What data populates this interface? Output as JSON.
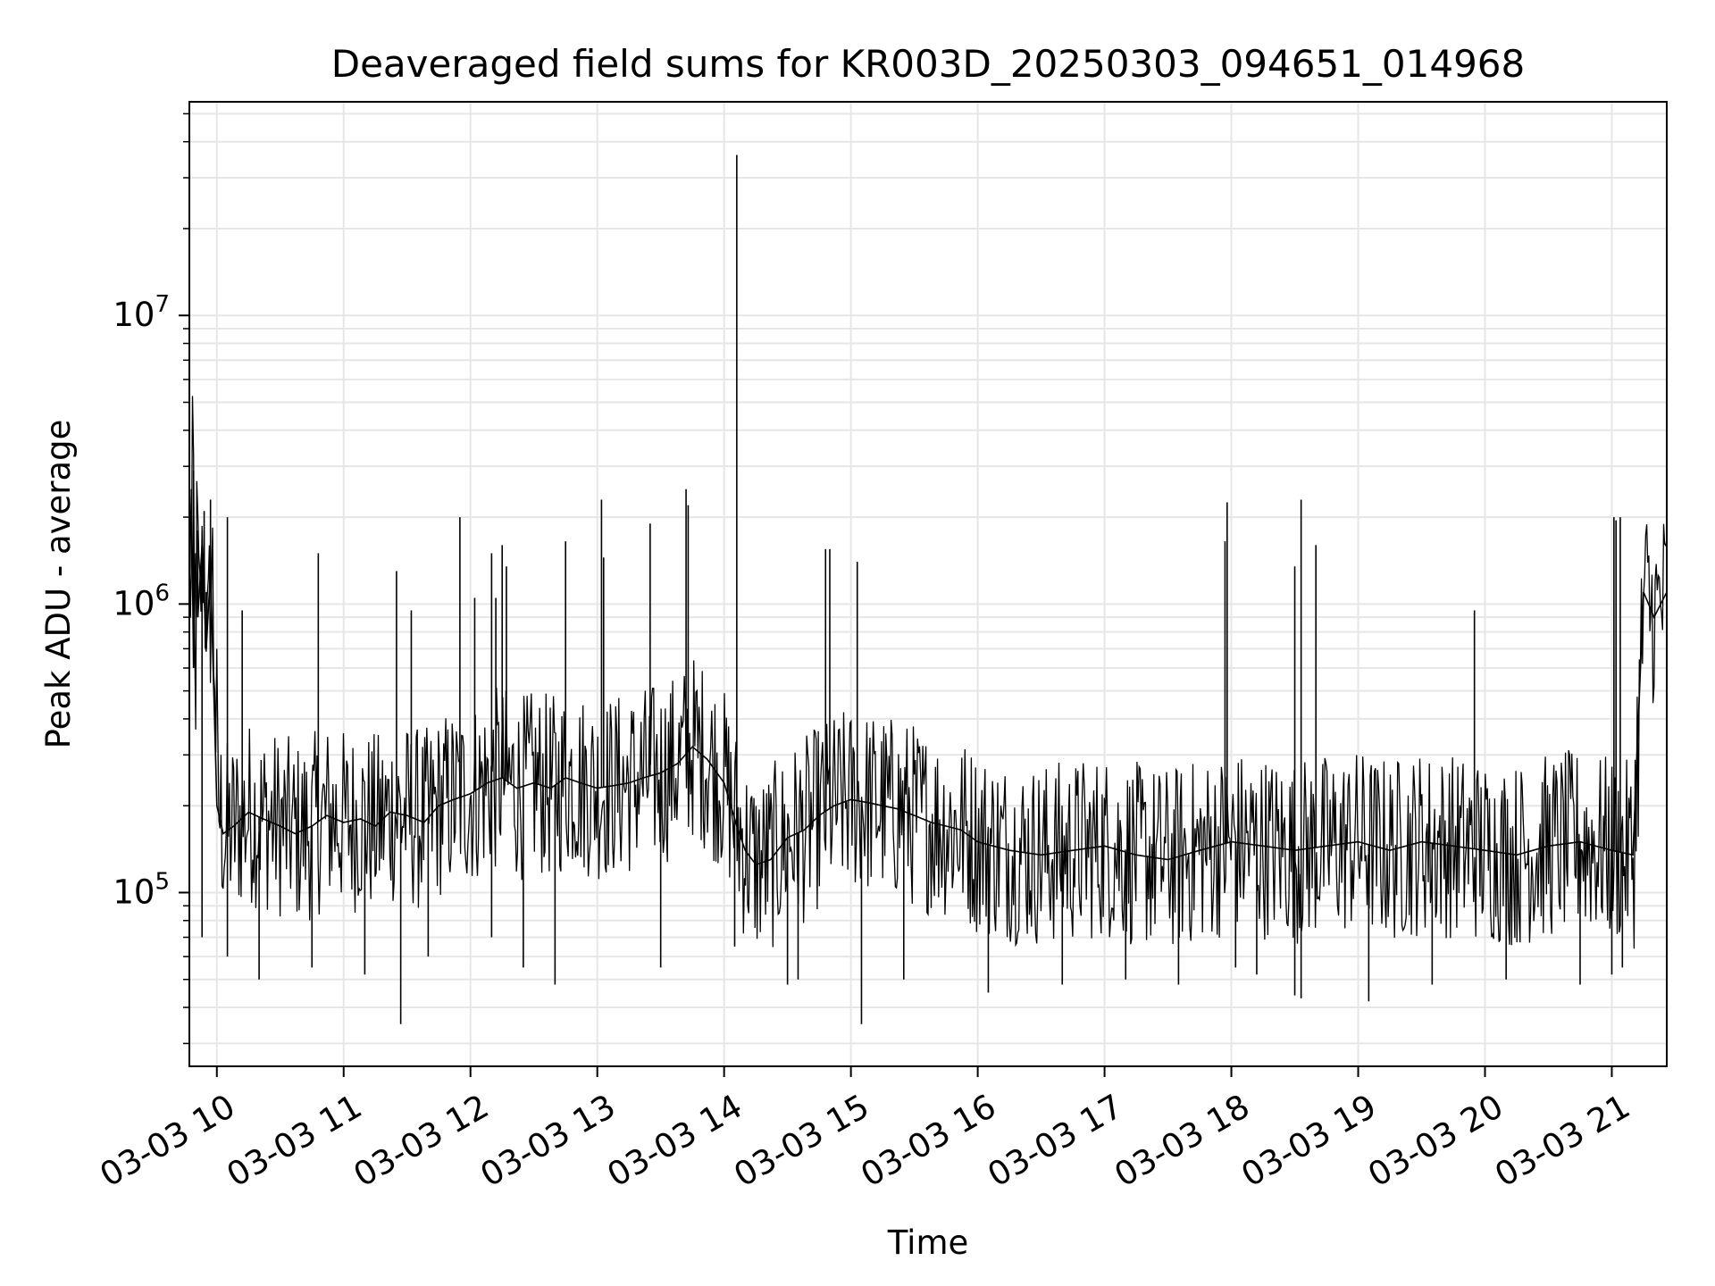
{
  "chart_data": {
    "type": "line",
    "title": "Deaveraged field sums for KR003D_20250303_094651_014968",
    "xlabel": "Time",
    "ylabel": "Peak ADU - average",
    "xlim": [
      "2025-03-03T09:47",
      "2025-03-03T21:26"
    ],
    "ylim": [
      25000,
      55000000
    ],
    "yscale": "log",
    "grid": true,
    "x_ticks": [
      {
        "t": "2025-03-03T10:00",
        "label": "03-03 10"
      },
      {
        "t": "2025-03-03T11:00",
        "label": "03-03 11"
      },
      {
        "t": "2025-03-03T12:00",
        "label": "03-03 12"
      },
      {
        "t": "2025-03-03T13:00",
        "label": "03-03 13"
      },
      {
        "t": "2025-03-03T14:00",
        "label": "03-03 14"
      },
      {
        "t": "2025-03-03T15:00",
        "label": "03-03 15"
      },
      {
        "t": "2025-03-03T16:00",
        "label": "03-03 16"
      },
      {
        "t": "2025-03-03T17:00",
        "label": "03-03 17"
      },
      {
        "t": "2025-03-03T18:00",
        "label": "03-03 18"
      },
      {
        "t": "2025-03-03T19:00",
        "label": "03-03 19"
      },
      {
        "t": "2025-03-03T20:00",
        "label": "03-03 20"
      },
      {
        "t": "2025-03-03T21:00",
        "label": "03-03 21"
      }
    ],
    "y_ticks": [
      {
        "value": 100000,
        "base": "10",
        "exp": "5"
      },
      {
        "value": 1000000,
        "base": "10",
        "exp": "6"
      },
      {
        "value": 10000000,
        "base": "10",
        "exp": "7"
      }
    ],
    "line_color": "#000000",
    "grid_color": "#e6e6e6",
    "series": [
      {
        "x": [
          "2025-03-03T09:47",
          "2025-03-03T09:48",
          "2025-03-03T09:49",
          "2025-03-03T09:50",
          "2025-03-03T09:51",
          "2025-03-03T09:53",
          "2025-03-03T09:55",
          "2025-03-03T09:57",
          "2025-03-03T10:00",
          "2025-03-03T10:03",
          "2025-03-03T10:08",
          "2025-03-03T10:15",
          "2025-03-03T10:22",
          "2025-03-03T10:30",
          "2025-03-03T10:37",
          "2025-03-03T10:45",
          "2025-03-03T10:52",
          "2025-03-03T11:00",
          "2025-03-03T11:08",
          "2025-03-03T11:15",
          "2025-03-03T11:22",
          "2025-03-03T11:30",
          "2025-03-03T11:38",
          "2025-03-03T11:45",
          "2025-03-03T11:52",
          "2025-03-03T12:00",
          "2025-03-03T12:08",
          "2025-03-03T12:15",
          "2025-03-03T12:22",
          "2025-03-03T12:30",
          "2025-03-03T12:38",
          "2025-03-03T12:45",
          "2025-03-03T12:52",
          "2025-03-03T13:00",
          "2025-03-03T13:08",
          "2025-03-03T13:15",
          "2025-03-03T13:22",
          "2025-03-03T13:30",
          "2025-03-03T13:38",
          "2025-03-03T13:45",
          "2025-03-03T13:52",
          "2025-03-03T14:00",
          "2025-03-03T14:06",
          "2025-03-03T14:10",
          "2025-03-03T14:15",
          "2025-03-03T14:22",
          "2025-03-03T14:30",
          "2025-03-03T14:38",
          "2025-03-03T14:45",
          "2025-03-03T14:52",
          "2025-03-03T15:00",
          "2025-03-03T15:08",
          "2025-03-03T15:15",
          "2025-03-03T15:22",
          "2025-03-03T15:30",
          "2025-03-03T15:38",
          "2025-03-03T15:45",
          "2025-03-03T15:52",
          "2025-03-03T16:00",
          "2025-03-03T16:15",
          "2025-03-03T16:30",
          "2025-03-03T16:45",
          "2025-03-03T17:00",
          "2025-03-03T17:15",
          "2025-03-03T17:30",
          "2025-03-03T17:45",
          "2025-03-03T18:00",
          "2025-03-03T18:15",
          "2025-03-03T18:30",
          "2025-03-03T18:45",
          "2025-03-03T19:00",
          "2025-03-03T19:15",
          "2025-03-03T19:30",
          "2025-03-03T19:45",
          "2025-03-03T20:00",
          "2025-03-03T20:15",
          "2025-03-03T20:30",
          "2025-03-03T20:45",
          "2025-03-03T21:00",
          "2025-03-03T21:10",
          "2025-03-03T21:15",
          "2025-03-03T21:20",
          "2025-03-03T21:26"
        ],
        "y": [
          1200000,
          2500000,
          600000,
          1500000,
          900000,
          1600000,
          700000,
          1300000,
          200000,
          160000,
          170000,
          190000,
          180000,
          170000,
          160000,
          170000,
          185000,
          175000,
          180000,
          170000,
          190000,
          185000,
          175000,
          200000,
          210000,
          220000,
          240000,
          250000,
          230000,
          240000,
          230000,
          250000,
          240000,
          230000,
          235000,
          240000,
          250000,
          260000,
          280000,
          320000,
          290000,
          240000,
          170000,
          140000,
          125000,
          130000,
          155000,
          165000,
          185000,
          200000,
          210000,
          205000,
          200000,
          195000,
          185000,
          175000,
          170000,
          165000,
          150000,
          140000,
          135000,
          140000,
          145000,
          135000,
          130000,
          140000,
          150000,
          145000,
          140000,
          145000,
          150000,
          140000,
          150000,
          145000,
          140000,
          135000,
          145000,
          150000,
          140000,
          135000,
          1100000,
          900000,
          1100000
        ]
      },
      {
        "x": [
          "2025-03-03T09:47",
          "2025-03-03T09:48",
          "2025-03-03T09:49",
          "2025-03-03T09:51",
          "2025-03-03T09:54",
          "2025-03-03T09:55",
          "2025-03-03T09:57",
          "2025-03-03T10:05",
          "2025-03-03T10:12",
          "2025-03-03T10:48",
          "2025-03-03T11:25",
          "2025-03-03T11:32",
          "2025-03-03T11:55",
          "2025-03-03T12:02",
          "2025-03-03T12:10",
          "2025-03-03T12:12",
          "2025-03-03T12:15",
          "2025-03-03T12:17",
          "2025-03-03T12:45",
          "2025-03-03T13:02",
          "2025-03-03T13:03",
          "2025-03-03T13:25",
          "2025-03-03T13:42",
          "2025-03-03T13:43",
          "2025-03-03T14:06",
          "2025-03-03T14:48",
          "2025-03-03T14:50",
          "2025-03-03T15:03",
          "2025-03-03T17:57",
          "2025-03-03T17:58",
          "2025-03-03T18:33",
          "2025-03-03T18:30",
          "2025-03-03T18:40",
          "2025-03-03T19:55",
          "2025-03-03T21:01",
          "2025-03-03T21:02",
          "2025-03-03T21:04"
        ],
        "y": [
          3200000,
          2100000,
          2900000,
          1800000,
          2100000,
          1100000,
          2300000,
          2000000,
          950000,
          1500000,
          1300000,
          950000,
          2000000,
          1050000,
          1500000,
          1050000,
          1600000,
          1350000,
          1650000,
          2300000,
          1450000,
          1900000,
          2500000,
          2200000,
          36000000,
          1550000,
          1550000,
          1400000,
          1650000,
          2250000,
          2300000,
          1350000,
          1600000,
          950000,
          2000000,
          1950000,
          2000000
        ]
      },
      {
        "x": [
          "2025-03-03T09:53",
          "2025-03-03T10:05",
          "2025-03-03T10:20",
          "2025-03-03T10:45",
          "2025-03-03T11:10",
          "2025-03-03T11:27",
          "2025-03-03T11:40",
          "2025-03-03T12:10",
          "2025-03-03T12:25",
          "2025-03-03T12:40",
          "2025-03-03T13:30",
          "2025-03-03T14:05",
          "2025-03-03T14:30",
          "2025-03-03T14:35",
          "2025-03-03T15:05",
          "2025-03-03T15:25",
          "2025-03-03T16:05",
          "2025-03-03T16:40",
          "2025-03-03T17:10",
          "2025-03-03T17:35",
          "2025-03-03T18:02",
          "2025-03-03T18:12",
          "2025-03-03T18:30",
          "2025-03-03T18:33",
          "2025-03-03T19:05",
          "2025-03-03T19:35",
          "2025-03-03T20:10",
          "2025-03-03T20:45",
          "2025-03-03T21:00",
          "2025-03-03T21:05"
        ],
        "y": [
          70000,
          60000,
          50000,
          55000,
          52000,
          35000,
          60000,
          70000,
          55000,
          48000,
          55000,
          65000,
          48000,
          50000,
          35000,
          50000,
          45000,
          48000,
          50000,
          48000,
          55000,
          52000,
          44000,
          43000,
          42000,
          48000,
          50000,
          48000,
          52000,
          55000
        ]
      }
    ]
  }
}
